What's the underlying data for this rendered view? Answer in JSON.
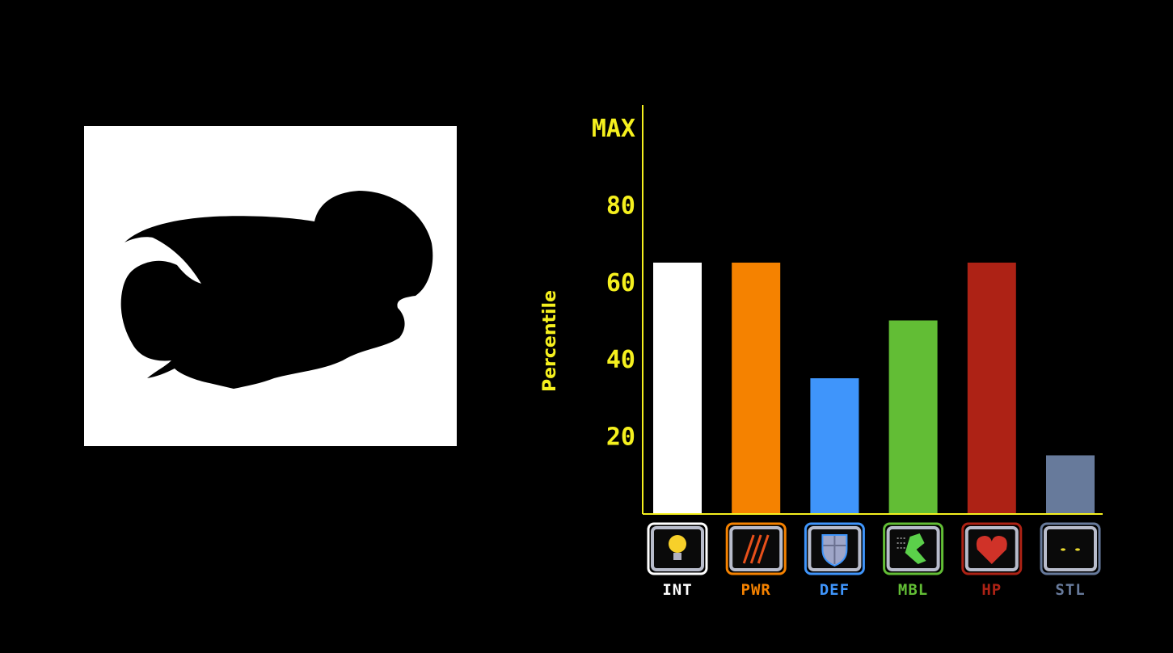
{
  "chart_data": {
    "type": "bar",
    "ylabel": "Percentile",
    "ylim": [
      0,
      100
    ],
    "yticks": [
      {
        "value": 20,
        "label": "20"
      },
      {
        "value": 40,
        "label": "40"
      },
      {
        "value": 60,
        "label": "60"
      },
      {
        "value": 80,
        "label": "80"
      },
      {
        "value": 100,
        "label": "MAX"
      }
    ],
    "categories": [
      "INT",
      "PWR",
      "DEF",
      "MBL",
      "HP",
      "STL"
    ],
    "values": [
      65,
      65,
      35,
      50,
      65,
      15
    ],
    "colors": [
      "#ffffff",
      "#f58200",
      "#3f95fb",
      "#62bd35",
      "#ad2215",
      "#677a9b"
    ],
    "icons": [
      "lightbulb-icon",
      "claw-marks-icon",
      "shield-icon",
      "winged-boot-icon",
      "heart-icon",
      "glowing-eyes-icon"
    ],
    "axis_color": "#f5f01e",
    "grid": false
  },
  "image": {
    "subject": "black silhouette on white background"
  }
}
